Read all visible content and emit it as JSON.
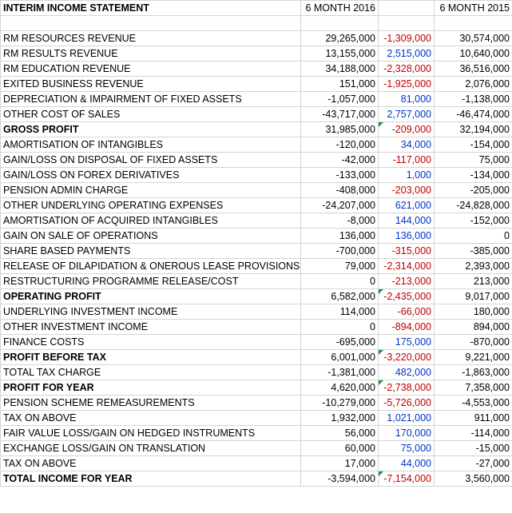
{
  "header": {
    "title": "INTERIM INCOME STATEMENT",
    "col_2016": "6 MONTH 2016",
    "col_change": "",
    "col_2015": "6 MONTH 2015"
  },
  "rows": [
    {
      "label": "RM RESOURCES REVENUE",
      "v2016": "29,265,000",
      "change": "-1,309,000",
      "dir": "neg",
      "v2015": "30,574,000",
      "bold": false,
      "flag": false
    },
    {
      "label": "RM RESULTS REVENUE",
      "v2016": "13,155,000",
      "change": "2,515,000",
      "dir": "pos",
      "v2015": "10,640,000",
      "bold": false,
      "flag": false
    },
    {
      "label": "RM EDUCATION REVENUE",
      "v2016": "34,188,000",
      "change": "-2,328,000",
      "dir": "neg",
      "v2015": "36,516,000",
      "bold": false,
      "flag": false
    },
    {
      "label": "EXITED BUSINESS REVENUE",
      "v2016": "151,000",
      "change": "-1,925,000",
      "dir": "neg",
      "v2015": "2,076,000",
      "bold": false,
      "flag": false
    },
    {
      "label": "DEPRECIATION & IMPAIRMENT OF FIXED ASSETS",
      "v2016": "-1,057,000",
      "change": "81,000",
      "dir": "pos",
      "v2015": "-1,138,000",
      "bold": false,
      "flag": false
    },
    {
      "label": "OTHER COST OF SALES",
      "v2016": "-43,717,000",
      "change": "2,757,000",
      "dir": "pos",
      "v2015": "-46,474,000",
      "bold": false,
      "flag": false
    },
    {
      "label": "GROSS PROFIT",
      "v2016": "31,985,000",
      "change": "-209,000",
      "dir": "neg",
      "v2015": "32,194,000",
      "bold": true,
      "flag": true
    },
    {
      "label": "AMORTISATION OF INTANGIBLES",
      "v2016": "-120,000",
      "change": "34,000",
      "dir": "pos",
      "v2015": "-154,000",
      "bold": false,
      "flag": false
    },
    {
      "label": "GAIN/LOSS ON DISPOSAL OF FIXED ASSETS",
      "v2016": "-42,000",
      "change": "-117,000",
      "dir": "neg",
      "v2015": "75,000",
      "bold": false,
      "flag": false
    },
    {
      "label": "GAIN/LOSS ON FOREX DERIVATIVES",
      "v2016": "-133,000",
      "change": "1,000",
      "dir": "pos",
      "v2015": "-134,000",
      "bold": false,
      "flag": false
    },
    {
      "label": "PENSION ADMIN CHARGE",
      "v2016": "-408,000",
      "change": "-203,000",
      "dir": "neg",
      "v2015": "-205,000",
      "bold": false,
      "flag": false
    },
    {
      "label": "OTHER UNDERLYING OPERATING EXPENSES",
      "v2016": "-24,207,000",
      "change": "621,000",
      "dir": "pos",
      "v2015": "-24,828,000",
      "bold": false,
      "flag": false
    },
    {
      "label": "AMORTISATION OF ACQUIRED INTANGIBLES",
      "v2016": "-8,000",
      "change": "144,000",
      "dir": "pos",
      "v2015": "-152,000",
      "bold": false,
      "flag": false
    },
    {
      "label": "GAIN ON SALE OF OPERATIONS",
      "v2016": "136,000",
      "change": "136,000",
      "dir": "pos",
      "v2015": "0",
      "bold": false,
      "flag": false
    },
    {
      "label": "SHARE BASED PAYMENTS",
      "v2016": "-700,000",
      "change": "-315,000",
      "dir": "neg",
      "v2015": "-385,000",
      "bold": false,
      "flag": false
    },
    {
      "label": "RELEASE OF DILAPIDATION & ONEROUS LEASE PROVISIONS",
      "v2016": "79,000",
      "change": "-2,314,000",
      "dir": "neg",
      "v2015": "2,393,000",
      "bold": false,
      "flag": false
    },
    {
      "label": "RESTRUCTURING PROGRAMME RELEASE/COST",
      "v2016": "0",
      "change": "-213,000",
      "dir": "neg",
      "v2015": "213,000",
      "bold": false,
      "flag": false
    },
    {
      "label": "OPERATING PROFIT",
      "v2016": "6,582,000",
      "change": "-2,435,000",
      "dir": "neg",
      "v2015": "9,017,000",
      "bold": true,
      "flag": true
    },
    {
      "label": "UNDERLYING INVESTMENT INCOME",
      "v2016": "114,000",
      "change": "-66,000",
      "dir": "neg",
      "v2015": "180,000",
      "bold": false,
      "flag": false
    },
    {
      "label": "OTHER INVESTMENT INCOME",
      "v2016": "0",
      "change": "-894,000",
      "dir": "neg",
      "v2015": "894,000",
      "bold": false,
      "flag": false
    },
    {
      "label": "FINANCE COSTS",
      "v2016": "-695,000",
      "change": "175,000",
      "dir": "pos",
      "v2015": "-870,000",
      "bold": false,
      "flag": false
    },
    {
      "label": "PROFIT BEFORE TAX",
      "v2016": "6,001,000",
      "change": "-3,220,000",
      "dir": "neg",
      "v2015": "9,221,000",
      "bold": true,
      "flag": true
    },
    {
      "label": "TOTAL TAX CHARGE",
      "v2016": "-1,381,000",
      "change": "482,000",
      "dir": "pos",
      "v2015": "-1,863,000",
      "bold": false,
      "flag": false
    },
    {
      "label": "PROFIT FOR YEAR",
      "v2016": "4,620,000",
      "change": "-2,738,000",
      "dir": "neg",
      "v2015": "7,358,000",
      "bold": true,
      "flag": true
    },
    {
      "label": "PENSION SCHEME REMEASUREMENTS",
      "v2016": "-10,279,000",
      "change": "-5,726,000",
      "dir": "neg",
      "v2015": "-4,553,000",
      "bold": false,
      "flag": false
    },
    {
      "label": "TAX ON ABOVE",
      "v2016": "1,932,000",
      "change": "1,021,000",
      "dir": "pos",
      "v2015": "911,000",
      "bold": false,
      "flag": false
    },
    {
      "label": "FAIR VALUE LOSS/GAIN ON HEDGED INSTRUMENTS",
      "v2016": "56,000",
      "change": "170,000",
      "dir": "pos",
      "v2015": "-114,000",
      "bold": false,
      "flag": false
    },
    {
      "label": "EXCHANGE LOSS/GAIN ON TRANSLATION",
      "v2016": "60,000",
      "change": "75,000",
      "dir": "pos",
      "v2015": "-15,000",
      "bold": false,
      "flag": false
    },
    {
      "label": "TAX ON ABOVE",
      "v2016": "17,000",
      "change": "44,000",
      "dir": "pos",
      "v2015": "-27,000",
      "bold": false,
      "flag": false
    },
    {
      "label": "TOTAL INCOME FOR YEAR",
      "v2016": "-3,594,000",
      "change": "-7,154,000",
      "dir": "neg",
      "v2015": "3,560,000",
      "bold": true,
      "flag": true
    }
  ],
  "colors": {
    "negative": "#c00000",
    "positive": "#0033cc",
    "gridline": "#d4d4d4",
    "flag": "#2e8b3c"
  }
}
